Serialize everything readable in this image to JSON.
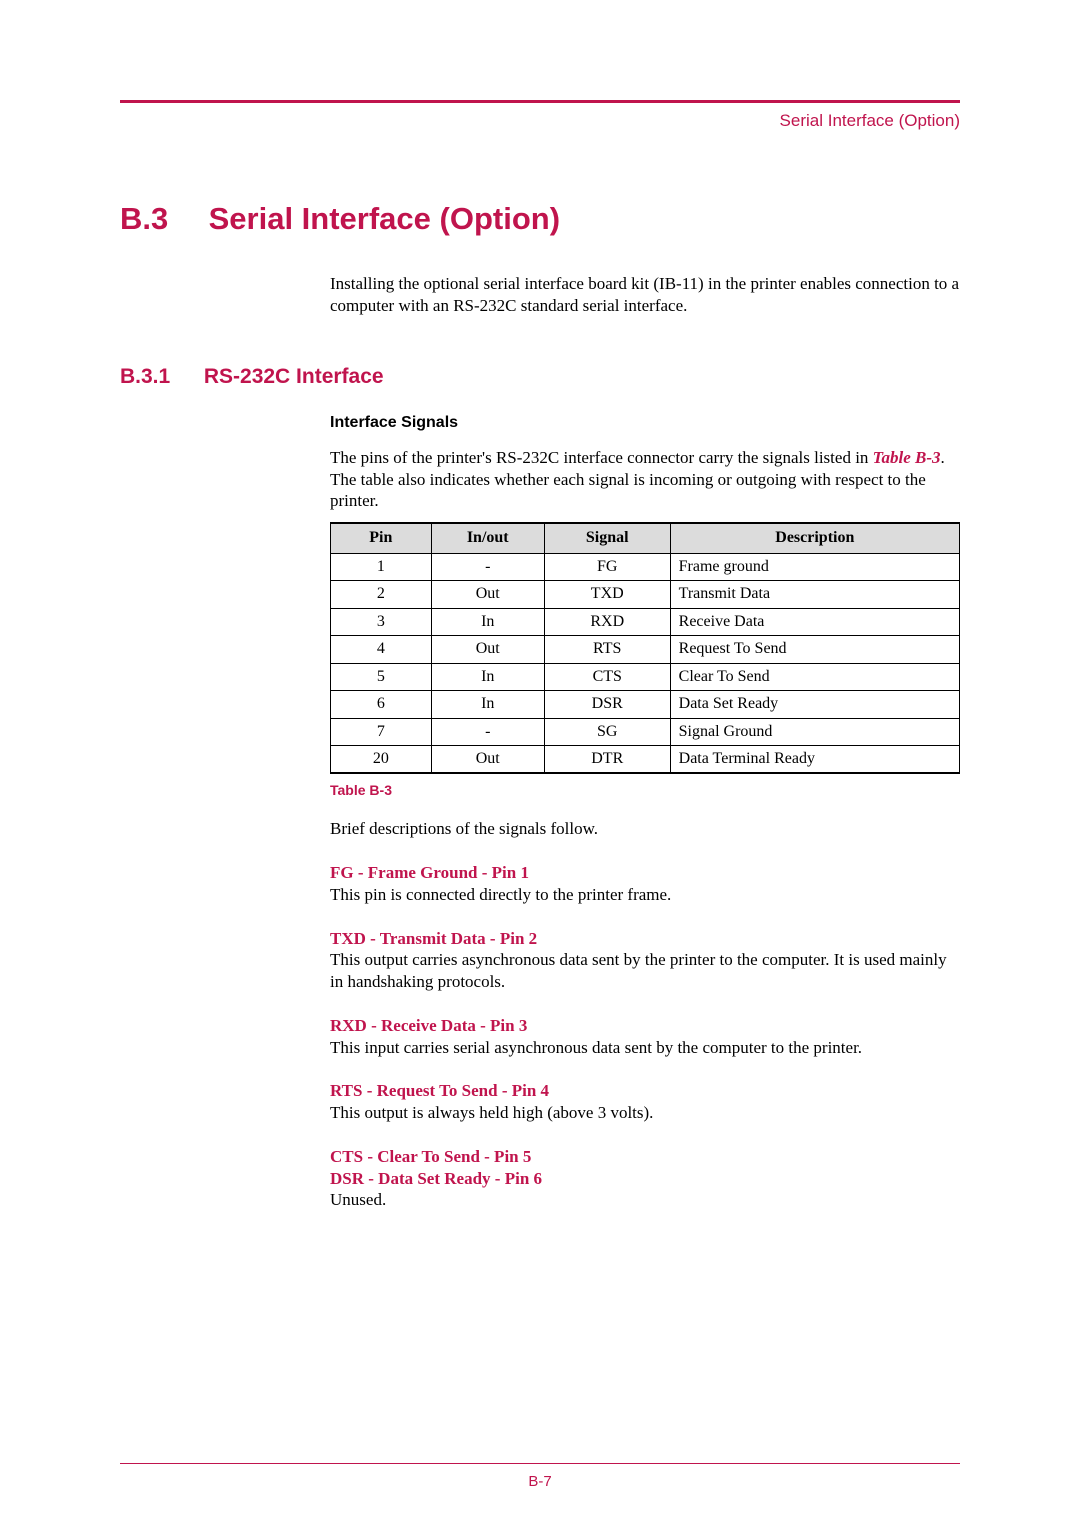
{
  "running_head": "Serial Interface (Option)",
  "section": {
    "number": "B.3",
    "title": "Serial Interface (Option)",
    "intro": "Installing the optional serial interface board kit (IB-11) in the printer enables connection to a computer with an RS-232C standard serial interface."
  },
  "subsection": {
    "number": "B.3.1",
    "title": "RS-232C Interface"
  },
  "subhead": "Interface Signals",
  "lead_in_pre": "The pins of the printer's RS-232C interface connector carry the signals listed in ",
  "lead_in_ref": "Table B-3",
  "lead_in_post": ". The table also indicates whether each signal is incoming or outgoing with respect to the printer.",
  "table": {
    "columns": [
      "Pin",
      "In/out",
      "Signal",
      "Description"
    ],
    "rows": [
      [
        "1",
        "-",
        "FG",
        "Frame ground"
      ],
      [
        "2",
        "Out",
        "TXD",
        "Transmit Data"
      ],
      [
        "3",
        "In",
        "RXD",
        "Receive Data"
      ],
      [
        "4",
        "Out",
        "RTS",
        "Request To Send"
      ],
      [
        "5",
        "In",
        "CTS",
        "Clear To Send"
      ],
      [
        "6",
        "In",
        "DSR",
        "Data Set Ready"
      ],
      [
        "7",
        "-",
        "SG",
        "Signal Ground"
      ],
      [
        "20",
        "Out",
        "DTR",
        "Data Terminal Ready"
      ]
    ],
    "label": "Table B-3"
  },
  "after_table": "Brief descriptions of the signals follow.",
  "signals": [
    {
      "title": "FG - Frame Ground - Pin 1",
      "desc": "This pin is connected directly to the printer frame."
    },
    {
      "title": "TXD - Transmit Data - Pin 2",
      "desc": "This output carries asynchronous data sent by the printer to the computer. It is used mainly in handshaking protocols."
    },
    {
      "title": "RXD - Receive Data - Pin 3",
      "desc": "This input carries serial asynchronous data sent by the computer to the printer."
    },
    {
      "title": "RTS - Request To Send - Pin 4",
      "desc": "This output is always held high (above 3 volts)."
    },
    {
      "title": "CTS - Clear To Send - Pin 5",
      "title2": "DSR - Data Set Ready - Pin 6",
      "desc": "Unused."
    }
  ],
  "page_number": "B-7",
  "colors": {
    "accent": "#c0144d",
    "header_bg": "#dcdcdc",
    "border": "#000000",
    "text": "#000000",
    "bg": "#ffffff"
  }
}
